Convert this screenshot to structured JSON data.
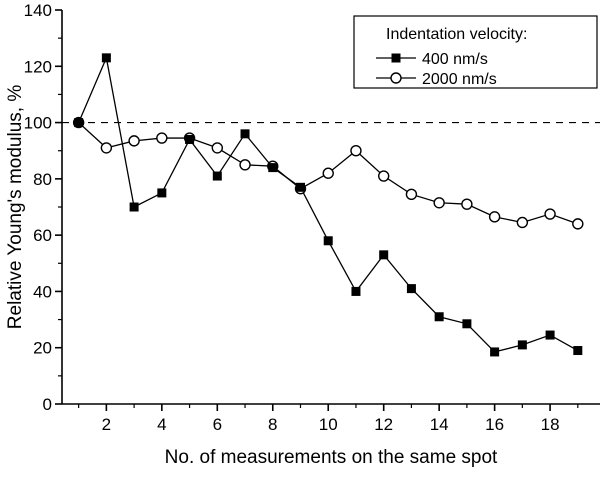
{
  "chart_data": {
    "type": "line",
    "title": "",
    "xlabel": "No. of measurements on the same spot",
    "ylabel": "Relative Young's modulus, %",
    "xlim": [
      0.4,
      19.8
    ],
    "ylim": [
      0,
      140
    ],
    "x_ticks": [
      2,
      4,
      6,
      8,
      10,
      12,
      14,
      16,
      18
    ],
    "y_ticks": [
      0,
      20,
      40,
      60,
      80,
      100,
      120,
      140
    ],
    "grid": false,
    "reference_line": {
      "y": 100,
      "style": "dashed"
    },
    "legend": {
      "title": "Indentation velocity:",
      "position": "top-right"
    },
    "x": [
      1,
      2,
      3,
      4,
      5,
      6,
      7,
      8,
      9,
      10,
      11,
      12,
      13,
      14,
      15,
      16,
      17,
      18,
      19
    ],
    "series": [
      {
        "name": "400 nm/s",
        "marker": "filled-square",
        "color": "#000000",
        "values": [
          100,
          123,
          70,
          75,
          94,
          81,
          96,
          84,
          77,
          58,
          40,
          53,
          41,
          31,
          28.5,
          18.5,
          21,
          24.5,
          19
        ]
      },
      {
        "name": "2000 nm/s",
        "marker": "open-circle",
        "color": "#000000",
        "values": [
          100,
          91,
          93.5,
          94.5,
          94.5,
          91,
          85,
          84.5,
          76.5,
          82,
          90,
          81,
          74.5,
          71.5,
          71,
          66.5,
          64.5,
          67.5,
          64
        ]
      }
    ]
  }
}
